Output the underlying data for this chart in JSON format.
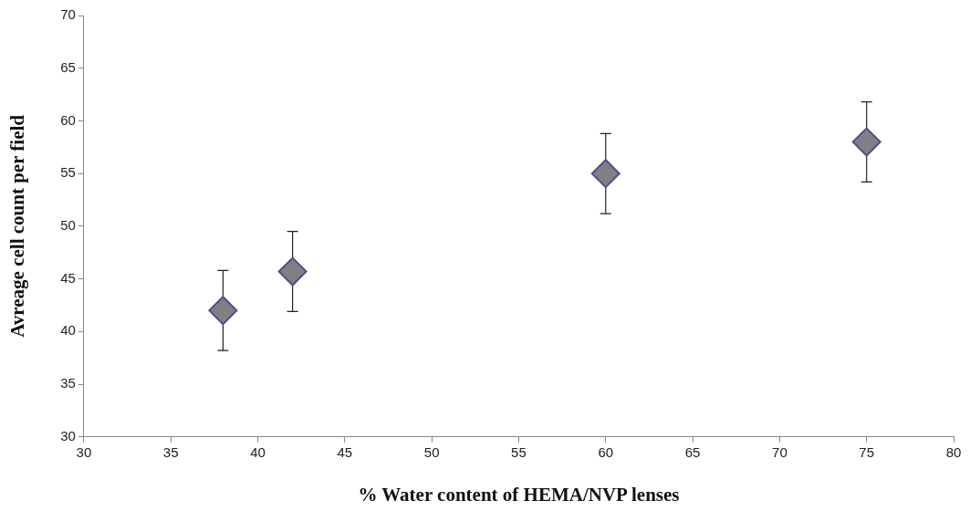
{
  "chart_data": {
    "type": "scatter",
    "xlabel": "% Water content of HEMA/NVP lenses",
    "ylabel": "Avreage cell count per field",
    "x": [
      38,
      42,
      60,
      75
    ],
    "values": [
      42,
      45.7,
      55,
      58
    ],
    "errors": [
      3.8,
      3.8,
      3.8,
      3.8
    ],
    "color": "#7f7f84",
    "marker": "diamond",
    "xlim": [
      30,
      80
    ],
    "xticks": [
      30,
      35,
      40,
      45,
      50,
      55,
      60,
      65,
      70,
      75,
      80
    ],
    "ylim": [
      30,
      70
    ],
    "yticks": [
      30,
      35,
      40,
      45,
      50,
      55,
      60,
      65,
      70
    ],
    "grid": false,
    "legend": false
  }
}
